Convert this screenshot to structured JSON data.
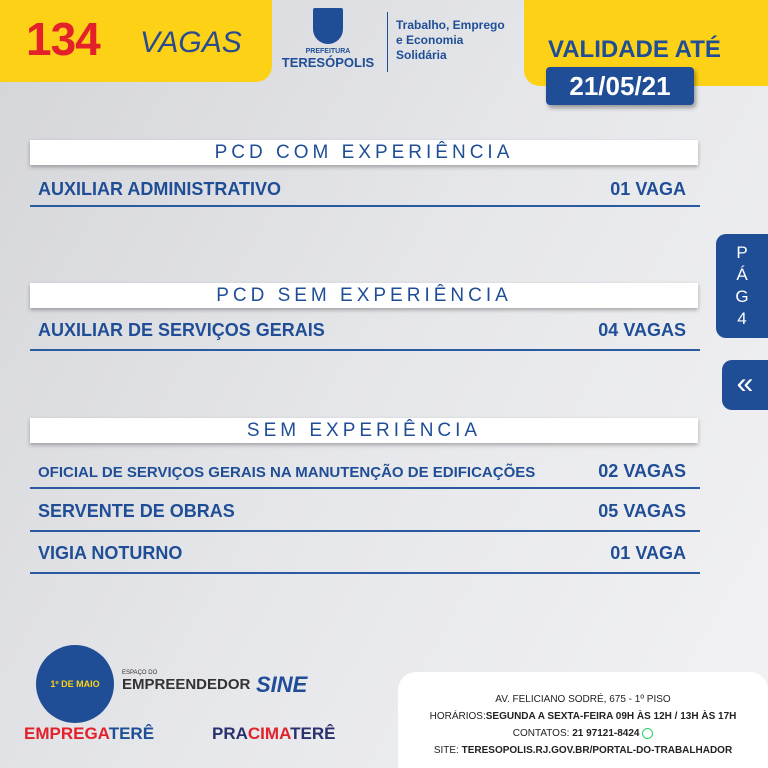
{
  "header": {
    "count": "134",
    "vagas_label": "VAGAS",
    "logo_top": "PREFEITURA",
    "logo_name": "TERESÓPOLIS",
    "department": [
      "Trabalho, Emprego",
      "e Economia",
      "Solidária"
    ],
    "validity_label": "VALIDADE ATÉ",
    "validity_date": "21/05/21"
  },
  "sections": [
    {
      "title": "PCD COM EXPERIÊNCIA",
      "jobs": [
        {
          "title": "AUXILIAR ADMINISTRATIVO",
          "count": "01 VAGA"
        }
      ]
    },
    {
      "title": "PCD SEM EXPERIÊNCIA",
      "jobs": [
        {
          "title": "AUXILIAR DE SERVIÇOS GERAIS",
          "count": "04 VAGAS"
        }
      ]
    },
    {
      "title": "SEM EXPERIÊNCIA",
      "jobs": [
        {
          "title": "OFICIAL DE SERVIÇOS GERAIS NA MANUTENÇÃO DE EDIFICAÇÕES",
          "count": "02 VAGAS"
        },
        {
          "title": "SERVENTE DE OBRAS",
          "count": "05 VAGAS"
        },
        {
          "title": "VIGIA NOTURNO",
          "count": "01 VAGA"
        }
      ]
    }
  ],
  "page_tab": {
    "letters": [
      "P",
      "Á",
      "G",
      "4"
    ],
    "back_icon": "double-chevron-left-icon"
  },
  "logos": {
    "badge": "1º DE MAIO",
    "emp_small": "ESPAÇO DO",
    "emp": "EMPREENDEDOR",
    "sine": "SINE",
    "emprega_a": "EMPREGA",
    "emprega_b": "TERÊ",
    "pracima_a": "PRA",
    "pracima_b": "CIMA",
    "pracima_c": "TERÊ"
  },
  "info": {
    "address": "AV. FELICIANO SODRÉ, 675 - 1º PISO",
    "hours_label": "HORÁRIOS:",
    "hours": "SEGUNDA A SEXTA-FEIRA  09H ÀS 12H / 13H ÀS 17H",
    "contact_label": "CONTATOS: ",
    "contact": "21 97121-8424",
    "site_label": "SITE: ",
    "site": "TERESOPOLIS.RJ.GOV.BR/PORTAL-DO-TRABALHADOR"
  },
  "colors": {
    "yellow": "#fcd116",
    "blue": "#1f4e96",
    "red": "#e3212b"
  }
}
